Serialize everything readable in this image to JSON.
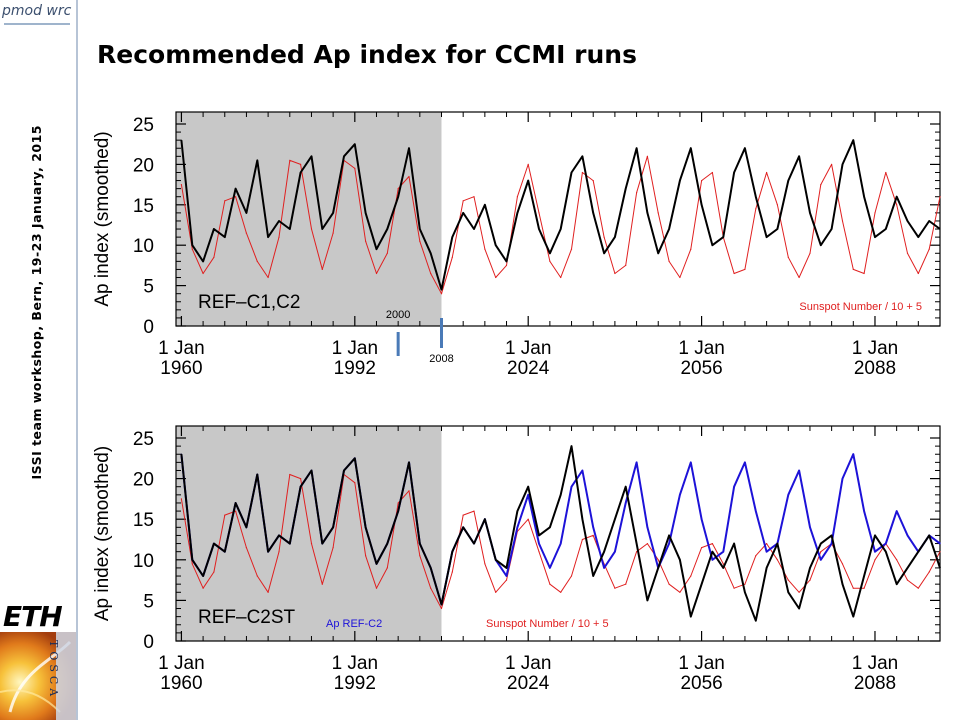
{
  "slide": {
    "title": "Recommended Ap index for CCMI runs",
    "sidebar_text": "ISSI team workshop, Bern, 19-23 January, 2015",
    "logos": {
      "top_left": "pmod wrc",
      "eth": "ETH",
      "tosca": "TOSCA"
    }
  },
  "colors": {
    "shading": "#c8c8c8",
    "ap_black": "#000000",
    "sunspot_red": "#e02020",
    "ap_blue": "#1d12d8",
    "marker_blue": "#4a7ab7"
  },
  "chart_data": [
    {
      "type": "line",
      "title": "",
      "ylabel": "Ap index (smoothed)",
      "xlabel": "",
      "ylim": [
        0,
        25
      ],
      "yticks": [
        "0",
        "5",
        "10",
        "15",
        "20",
        "25"
      ],
      "xticks": [
        {
          "line1": "1 Jan",
          "line2": "1960"
        },
        {
          "line1": "1 Jan",
          "line2": "1992"
        },
        {
          "line1": "1 Jan",
          "line2": "2024"
        },
        {
          "line1": "1 Jan",
          "line2": "2056"
        },
        {
          "line1": "1 Jan",
          "line2": "2088"
        }
      ],
      "panel_label": "REF–C1,C2",
      "legend": [
        "Sunspot Number / 10 + 5"
      ],
      "legend_placement": "bottom-right",
      "shaded_until_year": 2008,
      "markers": [
        {
          "label": "2000",
          "year": 2000
        },
        {
          "label": "2008",
          "year": 2008
        }
      ],
      "series": [
        {
          "name": "Sunspot Number / 10 + 5",
          "color_key": "sunspot_red",
          "x": [
            1960,
            1962,
            1964,
            1966,
            1968,
            1970,
            1972,
            1974,
            1976,
            1978,
            1980,
            1982,
            1984,
            1986,
            1988,
            1990,
            1992,
            1994,
            1996,
            1998,
            2000,
            2002,
            2004,
            2006,
            2008,
            2010,
            2012,
            2014,
            2016,
            2018,
            2020,
            2022,
            2024,
            2026,
            2028,
            2030,
            2032,
            2034,
            2036,
            2038,
            2040,
            2042,
            2044,
            2046,
            2048,
            2050,
            2052,
            2054,
            2056,
            2058,
            2060,
            2062,
            2064,
            2066,
            2068,
            2070,
            2072,
            2074,
            2076,
            2078,
            2080,
            2082,
            2084,
            2086,
            2088,
            2090,
            2092,
            2094,
            2096,
            2098,
            2100
          ],
          "values": [
            17.5,
            9.5,
            6.5,
            8.5,
            15.5,
            16,
            11.5,
            8,
            6,
            11,
            20.5,
            20,
            12,
            7,
            11.5,
            20.5,
            19.5,
            10.5,
            6.5,
            9,
            17,
            18.5,
            10.5,
            6.5,
            4,
            8.5,
            15.5,
            16,
            9.5,
            6,
            7.5,
            16,
            20,
            14,
            8,
            6,
            9.5,
            19,
            18,
            11,
            6.5,
            7.5,
            16.5,
            21,
            14,
            8,
            6,
            9.5,
            18,
            19,
            11,
            6.5,
            7,
            14.5,
            19,
            15,
            8.5,
            6,
            9,
            17.5,
            20,
            13,
            7,
            6.5,
            14,
            19,
            15,
            9,
            6.5,
            9.5,
            16
          ]
        },
        {
          "name": "Ap index (smoothed)",
          "color_key": "ap_black",
          "x": [
            1960,
            1962,
            1964,
            1966,
            1968,
            1970,
            1972,
            1974,
            1976,
            1978,
            1980,
            1982,
            1984,
            1986,
            1988,
            1990,
            1992,
            1994,
            1996,
            1998,
            2000,
            2002,
            2004,
            2006,
            2008,
            2010,
            2012,
            2014,
            2016,
            2018,
            2020,
            2022,
            2024,
            2026,
            2028,
            2030,
            2032,
            2034,
            2036,
            2038,
            2040,
            2042,
            2044,
            2046,
            2048,
            2050,
            2052,
            2054,
            2056,
            2058,
            2060,
            2062,
            2064,
            2066,
            2068,
            2070,
            2072,
            2074,
            2076,
            2078,
            2080,
            2082,
            2084,
            2086,
            2088,
            2090,
            2092,
            2094,
            2096,
            2098,
            2100
          ],
          "values": [
            23,
            10,
            8,
            12,
            11,
            17,
            14,
            20.5,
            11,
            13,
            12,
            19,
            21,
            12,
            14,
            21,
            22.5,
            14,
            9.5,
            12,
            16,
            22,
            12,
            9,
            4.5,
            11,
            14,
            12,
            15,
            10,
            8,
            14,
            18,
            12,
            9,
            12,
            19,
            21,
            14,
            9,
            11,
            17,
            22,
            14,
            9,
            12,
            18,
            22,
            15,
            10,
            11,
            19,
            22,
            16,
            11,
            12,
            18,
            21,
            14,
            10,
            12,
            20,
            23,
            16,
            11,
            12,
            16,
            13,
            11,
            13,
            12
          ]
        }
      ]
    },
    {
      "type": "line",
      "title": "",
      "ylabel": "Ap index (smoothed)",
      "xlabel": "",
      "ylim": [
        0,
        25
      ],
      "yticks": [
        "0",
        "5",
        "10",
        "15",
        "20",
        "25"
      ],
      "xticks": [
        {
          "line1": "1 Jan",
          "line2": "1960"
        },
        {
          "line1": "1 Jan",
          "line2": "1992"
        },
        {
          "line1": "1 Jan",
          "line2": "2024"
        },
        {
          "line1": "1 Jan",
          "line2": "2056"
        },
        {
          "line1": "1 Jan",
          "line2": "2088"
        }
      ],
      "panel_label": "REF–C2ST",
      "legend": [
        "Ap REF-C2",
        "Sunspot Number / 10 + 5"
      ],
      "legend_placement": "bottom",
      "shaded_until_year": 2008,
      "markers": [],
      "series": [
        {
          "name": "Sunspot Number / 10 + 5",
          "color_key": "sunspot_red",
          "x": [
            1960,
            1962,
            1964,
            1966,
            1968,
            1970,
            1972,
            1974,
            1976,
            1978,
            1980,
            1982,
            1984,
            1986,
            1988,
            1990,
            1992,
            1994,
            1996,
            1998,
            2000,
            2002,
            2004,
            2006,
            2008,
            2010,
            2012,
            2014,
            2016,
            2018,
            2020,
            2022,
            2024,
            2026,
            2028,
            2030,
            2032,
            2034,
            2036,
            2038,
            2040,
            2042,
            2044,
            2046,
            2048,
            2050,
            2052,
            2054,
            2056,
            2058,
            2060,
            2062,
            2064,
            2066,
            2068,
            2070,
            2072,
            2074,
            2076,
            2078,
            2080,
            2082,
            2084,
            2086,
            2088,
            2090,
            2092,
            2094,
            2096,
            2098,
            2100
          ],
          "values": [
            17.5,
            9.5,
            6.5,
            8.5,
            15.5,
            16,
            11.5,
            8,
            6,
            11,
            20.5,
            20,
            12,
            7,
            11.5,
            20.5,
            19.5,
            10.5,
            6.5,
            9,
            17,
            18.5,
            10.5,
            6.5,
            4,
            8.5,
            15.5,
            16,
            9.5,
            6,
            7.5,
            13.5,
            15,
            11,
            7,
            6,
            8,
            12.5,
            13,
            9.5,
            6.5,
            7,
            11,
            12,
            10,
            7,
            6,
            8,
            11.5,
            12,
            9.5,
            6.5,
            7,
            10.5,
            12,
            10,
            7.5,
            6,
            7.5,
            11,
            12,
            9.5,
            6.5,
            6.5,
            10,
            12,
            10,
            7.5,
            6.5,
            8.5,
            11
          ]
        },
        {
          "name": "Ap REF-C2",
          "color_key": "ap_blue",
          "x": [
            1960,
            1962,
            1964,
            1966,
            1968,
            1970,
            1972,
            1974,
            1976,
            1978,
            1980,
            1982,
            1984,
            1986,
            1988,
            1990,
            1992,
            1994,
            1996,
            1998,
            2000,
            2002,
            2004,
            2006,
            2008,
            2010,
            2012,
            2014,
            2016,
            2018,
            2020,
            2022,
            2024,
            2026,
            2028,
            2030,
            2032,
            2034,
            2036,
            2038,
            2040,
            2042,
            2044,
            2046,
            2048,
            2050,
            2052,
            2054,
            2056,
            2058,
            2060,
            2062,
            2064,
            2066,
            2068,
            2070,
            2072,
            2074,
            2076,
            2078,
            2080,
            2082,
            2084,
            2086,
            2088,
            2090,
            2092,
            2094,
            2096,
            2098,
            2100
          ],
          "values": [
            23,
            10,
            8,
            12,
            11,
            17,
            14,
            20.5,
            11,
            13,
            12,
            19,
            21,
            12,
            14,
            21,
            22.5,
            14,
            9.5,
            12,
            16,
            22,
            12,
            9,
            4.5,
            11,
            14,
            12,
            15,
            10,
            8,
            14,
            18,
            12,
            9,
            12,
            19,
            21,
            14,
            9,
            11,
            17,
            22,
            14,
            9,
            12,
            18,
            22,
            15,
            10,
            11,
            19,
            22,
            16,
            11,
            12,
            18,
            21,
            14,
            10,
            12,
            20,
            23,
            16,
            11,
            12,
            16,
            13,
            11,
            13,
            12
          ]
        },
        {
          "name": "Ap REF-C2ST",
          "color_key": "ap_black",
          "x": [
            1960,
            1962,
            1964,
            1966,
            1968,
            1970,
            1972,
            1974,
            1976,
            1978,
            1980,
            1982,
            1984,
            1986,
            1988,
            1990,
            1992,
            1994,
            1996,
            1998,
            2000,
            2002,
            2004,
            2006,
            2008,
            2010,
            2012,
            2014,
            2016,
            2018,
            2020,
            2022,
            2024,
            2026,
            2028,
            2030,
            2032,
            2034,
            2036,
            2038,
            2040,
            2042,
            2044,
            2046,
            2048,
            2050,
            2052,
            2054,
            2056,
            2058,
            2060,
            2062,
            2064,
            2066,
            2068,
            2070,
            2072,
            2074,
            2076,
            2078,
            2080,
            2082,
            2084,
            2086,
            2088,
            2090,
            2092,
            2094,
            2096,
            2098,
            2100
          ],
          "values": [
            23,
            10,
            8,
            12,
            11,
            17,
            14,
            20.5,
            11,
            13,
            12,
            19,
            21,
            12,
            14,
            21,
            22.5,
            14,
            9.5,
            12,
            16,
            22,
            12,
            9,
            4.5,
            11,
            14,
            12,
            15,
            10,
            9,
            16,
            19,
            13,
            14,
            18,
            24,
            15,
            8,
            11,
            15,
            19,
            12,
            5,
            9,
            13,
            10,
            3,
            7,
            11,
            9,
            12,
            6,
            2.5,
            9,
            12,
            6,
            4,
            9,
            12,
            13,
            7,
            3,
            8,
            13,
            11,
            7,
            9,
            11,
            13,
            9
          ]
        }
      ]
    }
  ]
}
